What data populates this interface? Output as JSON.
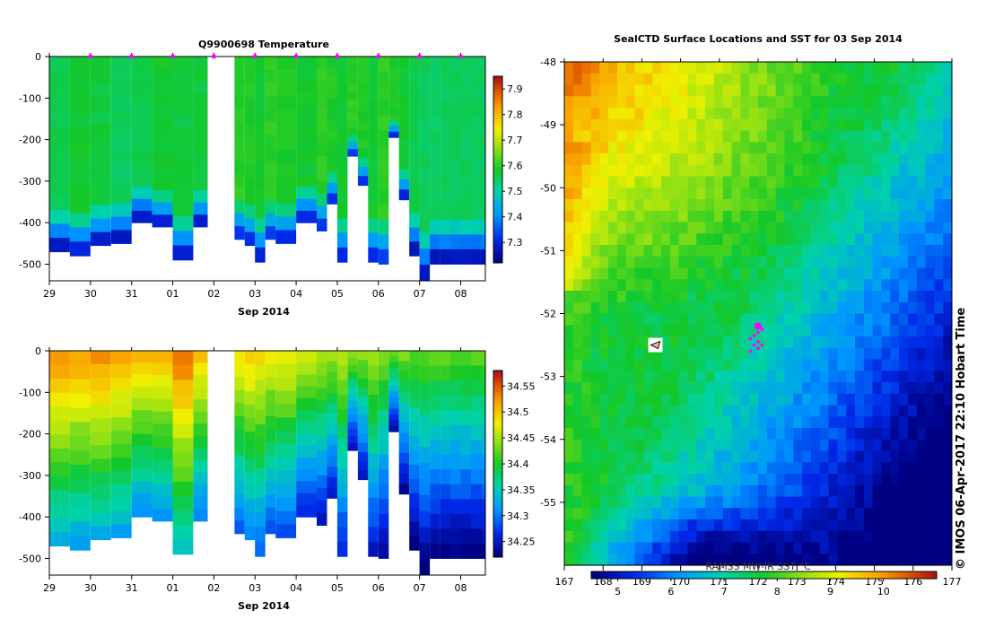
{
  "colors": {
    "frame": "#000000",
    "trajectory": "#ff00ff",
    "background": "#ffffff"
  },
  "chart_data": [
    {
      "type": "heatmap",
      "title": "Q9900698  Temperature",
      "xlabel": "Sep 2014",
      "x_ticks": [
        "29",
        "30",
        "31",
        "01",
        "02",
        "03",
        "04",
        "05",
        "06",
        "07",
        "08"
      ],
      "y_ticks": [
        "0",
        "-100",
        "-200",
        "-300",
        "-400",
        "-500"
      ],
      "ylim": [
        -540,
        0
      ],
      "colorbar_ticks": [
        "7.9",
        "7.8",
        "7.7",
        "7.6",
        "7.5",
        "7.4",
        "7.3"
      ],
      "colorbar_range": [
        7.22,
        7.95
      ],
      "profile_days": [
        29.0,
        29.5,
        30.0,
        30.5,
        31.0,
        31.5,
        32.0,
        32.5,
        33.5,
        33.75,
        34.0,
        34.25,
        34.5,
        35.0,
        35.5,
        35.75,
        36.0,
        36.25,
        36.5,
        36.75,
        37.0,
        37.25,
        37.5,
        37.75,
        38.0,
        38.25,
        38.5,
        38.75,
        39.0,
        39.25,
        39.5
      ],
      "profile_max_depth": [
        470,
        480,
        455,
        450,
        400,
        410,
        490,
        410,
        440,
        455,
        495,
        440,
        450,
        400,
        420,
        355,
        495,
        240,
        310,
        495,
        500,
        195,
        345,
        480,
        540,
        500,
        500,
        500,
        500,
        500,
        500
      ],
      "surface_values": [
        7.56,
        7.58,
        7.57,
        7.55,
        7.56,
        7.58,
        7.57,
        7.57,
        7.6,
        7.59,
        7.58,
        7.6,
        7.59,
        7.58,
        7.6,
        7.59,
        7.58,
        7.6,
        7.59,
        7.58,
        7.6,
        7.59,
        7.58,
        7.56,
        7.55,
        7.55,
        7.55,
        7.55,
        7.55,
        7.55,
        7.55
      ]
    },
    {
      "type": "heatmap",
      "title": "",
      "xlabel": "Sep 2014",
      "x_ticks": [
        "29",
        "30",
        "31",
        "01",
        "02",
        "03",
        "04",
        "05",
        "06",
        "07",
        "08"
      ],
      "y_ticks": [
        "0",
        "-100",
        "-200",
        "-300",
        "-400",
        "-500"
      ],
      "ylim": [
        -540,
        0
      ],
      "colorbar_ticks": [
        "34.55",
        "34.5",
        "34.45",
        "34.4",
        "34.35",
        "34.3",
        "34.25"
      ],
      "colorbar_range": [
        34.22,
        34.58
      ],
      "profile_days": [
        29.0,
        29.5,
        30.0,
        30.5,
        31.0,
        31.5,
        32.0,
        32.5,
        33.5,
        33.75,
        34.0,
        34.25,
        34.5,
        35.0,
        35.5,
        35.75,
        36.0,
        36.25,
        36.5,
        36.75,
        37.0,
        37.25,
        37.5,
        37.75,
        38.0,
        38.25,
        38.5,
        38.75,
        39.0,
        39.25,
        39.5
      ],
      "profile_max_depth": [
        470,
        480,
        455,
        450,
        400,
        410,
        490,
        410,
        440,
        455,
        495,
        440,
        450,
        400,
        420,
        355,
        495,
        240,
        310,
        495,
        500,
        195,
        345,
        480,
        540,
        500,
        500,
        500,
        500,
        500,
        500
      ],
      "surface_values": [
        34.53,
        34.52,
        34.53,
        34.52,
        34.51,
        34.51,
        34.54,
        34.5,
        34.49,
        34.5,
        34.49,
        34.48,
        34.48,
        34.46,
        34.45,
        34.45,
        34.46,
        34.44,
        34.44,
        34.45,
        34.43,
        34.43,
        34.43,
        34.42,
        34.42,
        34.42,
        34.42,
        34.42,
        34.42,
        34.42,
        34.42
      ]
    },
    {
      "type": "heatmap",
      "title": "SealCTD Surface Locations and SST for 03 Sep 2014",
      "xlim": [
        167,
        177
      ],
      "ylim": [
        -56,
        -48
      ],
      "x_ticks": [
        "167",
        "168",
        "169",
        "170",
        "171",
        "172",
        "173",
        "174",
        "175",
        "176",
        "177"
      ],
      "y_ticks": [
        "-48",
        "-49",
        "-50",
        "-51",
        "-52",
        "-53",
        "-54",
        "-55"
      ],
      "colorbar_label": "RAMSS MW-IR SST °C",
      "colorbar_ticks": [
        "5",
        "6",
        "7",
        "8",
        "9",
        "10"
      ],
      "colorbar_range": [
        4.5,
        11
      ],
      "seal_track": {
        "lon": [
          172.0,
          172.1,
          172.0,
          171.9,
          171.8,
          171.9,
          172.0,
          172.1,
          172.0,
          171.8
        ],
        "lat": [
          -52.2,
          -52.25,
          -52.3,
          -52.35,
          -52.4,
          -52.5,
          -52.55,
          -52.5,
          -52.45,
          -52.6
        ]
      },
      "ship_marker": {
        "lon": 169.35,
        "lat": -52.5
      }
    }
  ],
  "credit": "©  IMOS 06-Apr-2017 22:10 Hobart Time"
}
